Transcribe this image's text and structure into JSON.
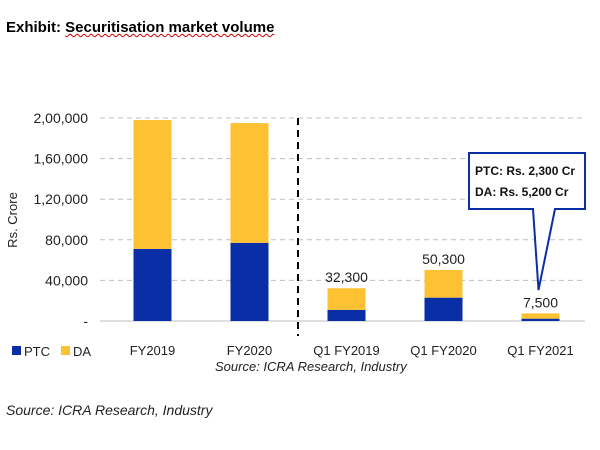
{
  "title_prefix": "Exhibit: ",
  "title_main": "Securitisation market volume",
  "footer_source": "Source: ICRA Research, Industry",
  "chart_data": {
    "type": "bar",
    "stacked": true,
    "categories": [
      "FY2019",
      "FY2020",
      "Q1 FY2019",
      "Q1 FY2020",
      "Q1 FY2021"
    ],
    "series": [
      {
        "name": "PTC",
        "color": "#0a2ea5",
        "values": [
          71000,
          77000,
          11000,
          23000,
          2300
        ]
      },
      {
        "name": "DA",
        "color": "#fdc132",
        "values": [
          127000,
          118000,
          21300,
          27300,
          5200
        ]
      }
    ],
    "data_labels": [
      "",
      "",
      "32,300",
      "50,300",
      "7,500"
    ],
    "ylabel": "Rs. Crore",
    "ylim": [
      0,
      200000
    ],
    "yticks": [
      0,
      40000,
      80000,
      120000,
      160000,
      200000
    ],
    "ytick_labels": [
      "-",
      "40,000",
      "80,000",
      "1,20,000",
      "1,60,000",
      "2,00,000"
    ],
    "grid": "horizontal dashed",
    "legend": "bottom-left",
    "divider_after_category": "FY2020",
    "callout": {
      "category": "Q1 FY2021",
      "lines": [
        "PTC: Rs. 2,300 Cr",
        "DA:  Rs. 5,200 Cr"
      ],
      "border_color": "#0a2ea5"
    },
    "source_note": "Source: ICRA Research, Industry"
  }
}
